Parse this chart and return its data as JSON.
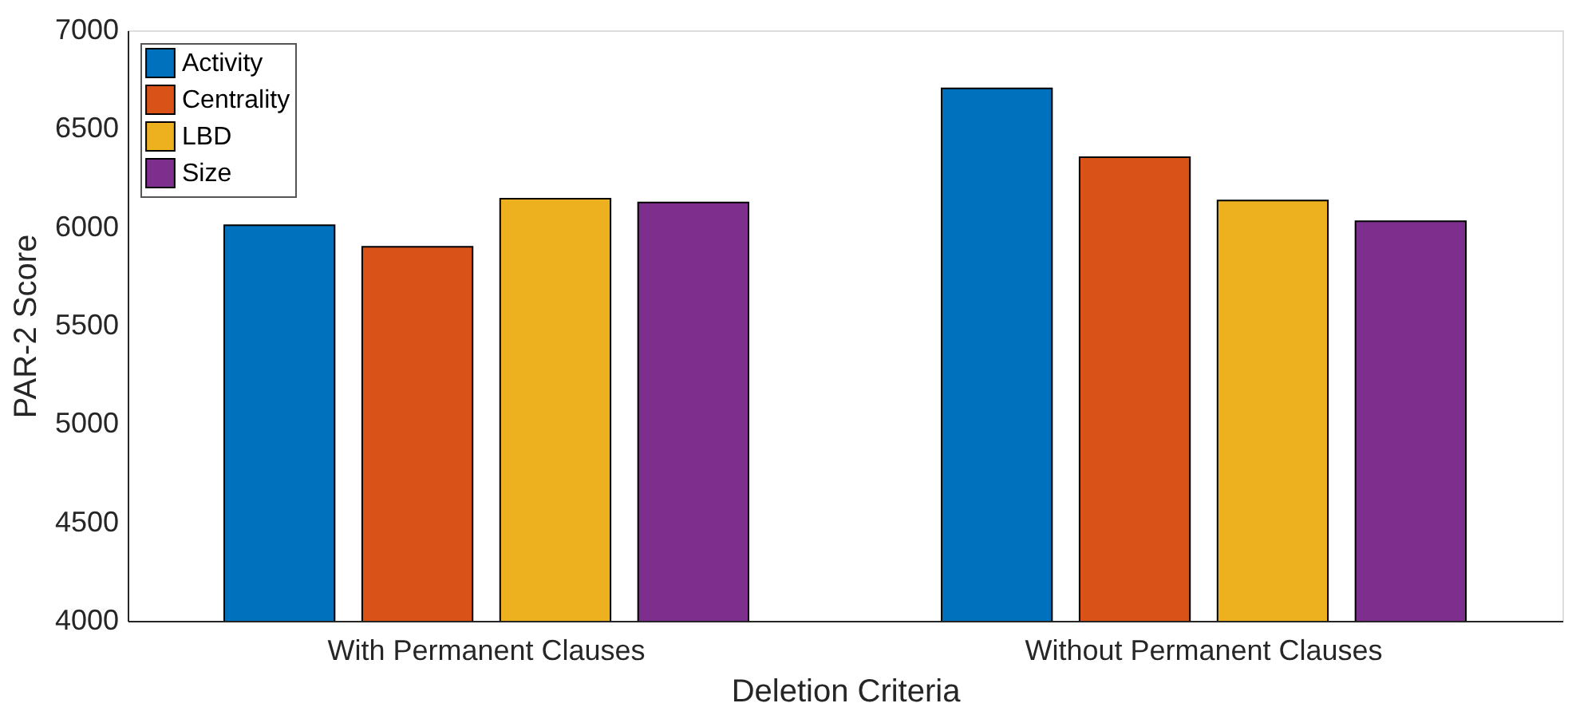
{
  "chart_data": {
    "type": "bar",
    "xlabel": "Deletion Criteria",
    "ylabel": "PAR-2 Score",
    "categories": [
      "With Permanent Clauses",
      "Without Permanent Clauses"
    ],
    "series": [
      {
        "name": "Activity",
        "color": "#0072bd",
        "values": [
          6010,
          6705
        ]
      },
      {
        "name": "Centrality",
        "color": "#d95319",
        "values": [
          5900,
          6355
        ]
      },
      {
        "name": "LBD",
        "color": "#edb120",
        "values": [
          6145,
          6135
        ]
      },
      {
        "name": "Size",
        "color": "#7e2f8e",
        "values": [
          6125,
          6030
        ]
      }
    ],
    "ylim": [
      4000,
      7000
    ],
    "yticks": [
      4000,
      4500,
      5000,
      5500,
      6000,
      6500,
      7000
    ],
    "grid": false,
    "legend": "top left"
  }
}
